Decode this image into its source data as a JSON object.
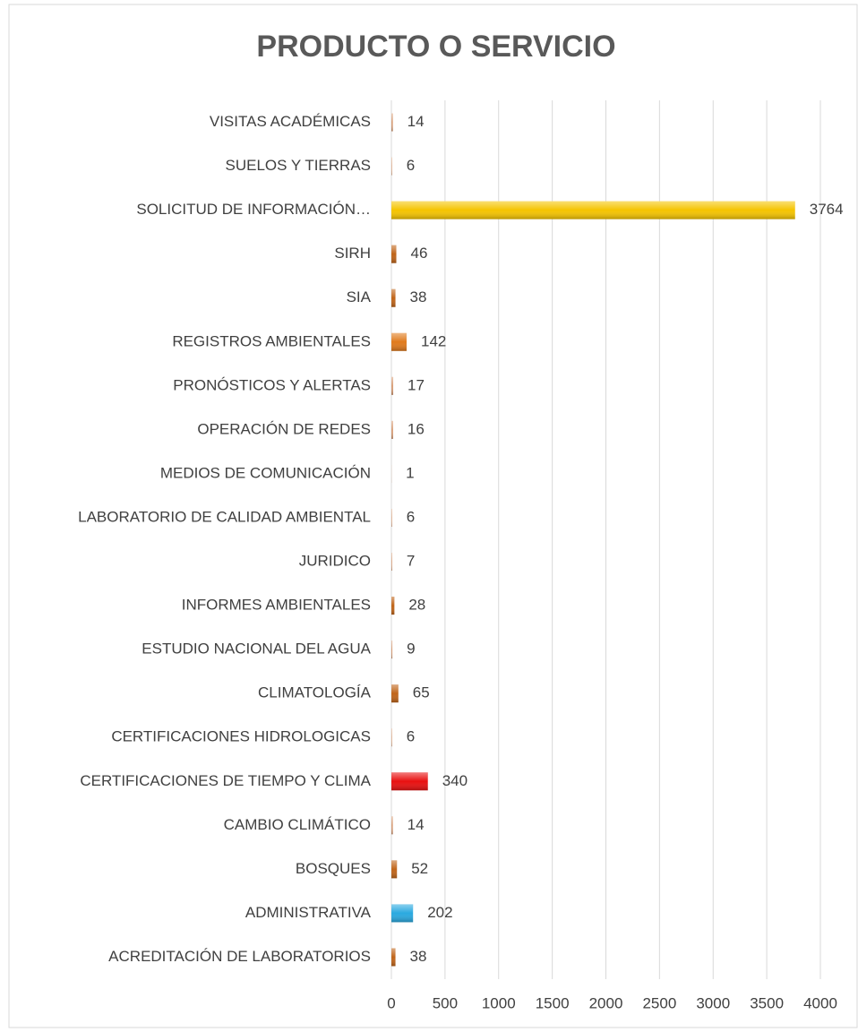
{
  "chart_data": {
    "type": "hbar",
    "title": "PRODUCTO O SERVICIO",
    "categories": [
      "VISITAS ACADÉMICAS",
      "SUELOS Y TIERRAS",
      "SOLICITUD DE INFORMACIÓN…",
      "SIRH",
      "SIA",
      "REGISTROS AMBIENTALES",
      "PRONÓSTICOS Y ALERTAS",
      "OPERACIÓN DE REDES",
      "MEDIOS DE COMUNICACIÓN",
      "LABORATORIO DE CALIDAD AMBIENTAL",
      "JURIDICO",
      "INFORMES AMBIENTALES",
      "ESTUDIO NACIONAL DEL AGUA",
      "CLIMATOLOGÍA",
      "CERTIFICACIONES HIDROLOGICAS",
      "CERTIFICACIONES DE TIEMPO Y CLIMA",
      "CAMBIO CLIMÁTICO",
      "BOSQUES",
      "ADMINISTRATIVA",
      "ACREDITACIÓN DE LABORATORIOS"
    ],
    "values": [
      14,
      6,
      3764,
      46,
      38,
      142,
      17,
      16,
      1,
      6,
      7,
      28,
      9,
      65,
      6,
      340,
      14,
      52,
      202,
      38
    ],
    "colors": [
      "#d9a07a",
      "#d9a07a",
      "#f5c400",
      "#c0651a",
      "#c0651a",
      "#e07a1c",
      "#d9a07a",
      "#d9a07a",
      "#d9a07a",
      "#d9a07a",
      "#d9a07a",
      "#c0651a",
      "#d9a07a",
      "#c0651a",
      "#d9a07a",
      "#e81010",
      "#d9a07a",
      "#c0651a",
      "#2aa9e0",
      "#c0651a"
    ],
    "xlim": [
      0,
      4000
    ],
    "xticks": [
      0,
      500,
      1000,
      1500,
      2000,
      2500,
      3000,
      3500,
      4000
    ],
    "grid": true
  }
}
